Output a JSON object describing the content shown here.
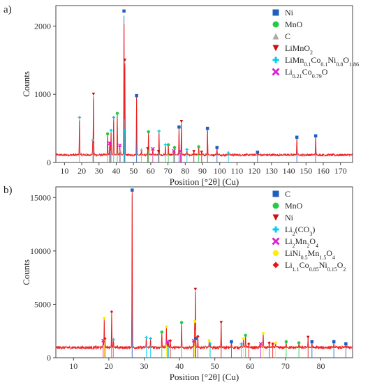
{
  "chart_data": [
    {
      "type": "line",
      "panel": "a)",
      "xlabel": "Position [°2θ] (Cu)",
      "ylabel": "Counts",
      "xlim": [
        5,
        177
      ],
      "ylim": [
        0,
        2300
      ],
      "xticks": [
        10,
        20,
        30,
        40,
        50,
        60,
        70,
        80,
        90,
        100,
        110,
        120,
        130,
        140,
        150,
        160,
        170
      ],
      "yticks": [
        0,
        1000,
        2000
      ],
      "grid": false,
      "legend_position": "top-right",
      "background_noise": 110,
      "series": [
        {
          "name": "Ni",
          "parts": [
            [
              "Ni",
              "normal"
            ]
          ],
          "marker": "square",
          "color": "#1f5fbf",
          "peaks": [
            [
              44.5,
              2220
            ],
            [
              51.8,
              980
            ],
            [
              76.4,
              520
            ],
            [
              92.9,
              500
            ],
            [
              98.4,
              220
            ],
            [
              121.9,
              150
            ],
            [
              144.7,
              370
            ],
            [
              155.6,
              390
            ]
          ]
        },
        {
          "name": "MnO",
          "parts": [
            [
              "MnO",
              "normal"
            ]
          ],
          "marker": "circle",
          "color": "#22cc44",
          "peaks": [
            [
              35.0,
              420
            ],
            [
              40.6,
              720
            ],
            [
              58.7,
              450
            ],
            [
              70.2,
              260
            ],
            [
              73.8,
              220
            ],
            [
              87.8,
              230
            ]
          ]
        },
        {
          "name": "C",
          "parts": [
            [
              "C",
              "normal"
            ]
          ],
          "marker": "triangle",
          "color": "#aaaaaa",
          "peaks": [
            [
              26.4,
              340
            ],
            [
              42.4,
              170
            ],
            [
              54.6,
              190
            ],
            [
              77.4,
              160
            ]
          ]
        },
        {
          "name": "LiMnO2",
          "parts": [
            [
              "LiMnO",
              "normal"
            ],
            [
              "2",
              "sub"
            ]
          ],
          "marker": "triangle-down",
          "color": "#cc1111",
          "peaks": [
            [
              26.8,
              1000
            ],
            [
              36.5,
              280
            ],
            [
              45.0,
              1500
            ],
            [
              58.3,
              200
            ],
            [
              64.5,
              160
            ],
            [
              77.8,
              600
            ],
            [
              85.0,
              160
            ],
            [
              89.5,
              150
            ]
          ]
        },
        {
          "name": "LiMn0.1Co0.1Ni0.8O1.86",
          "parts": [
            [
              "LiMn",
              "normal"
            ],
            [
              "0.1",
              "sub"
            ],
            [
              "Co",
              "normal"
            ],
            [
              "0.1",
              "sub"
            ],
            [
              "Ni",
              "normal"
            ],
            [
              "0.8",
              "sub"
            ],
            [
              "O",
              "normal"
            ],
            [
              "1.86",
              "sub"
            ]
          ],
          "marker": "plus",
          "color": "#00ccee",
          "peaks": [
            [
              18.7,
              660
            ],
            [
              37.0,
              470
            ],
            [
              38.5,
              660
            ],
            [
              44.8,
              460
            ],
            [
              64.8,
              460
            ],
            [
              68.5,
              260
            ],
            [
              81.0,
              190
            ],
            [
              105.0,
              140
            ]
          ]
        },
        {
          "name": "Li0.21Co0.79O",
          "parts": [
            [
              "Li",
              "normal"
            ],
            [
              "0.21",
              "sub"
            ],
            [
              "Co",
              "normal"
            ],
            [
              "0.79",
              "sub"
            ],
            [
              "O",
              "normal"
            ]
          ],
          "marker": "x",
          "color": "#dd22cc",
          "peaks": [
            [
              36.2,
              280
            ],
            [
              42.1,
              250
            ],
            [
              61.2,
              200
            ],
            [
              73.4,
              170
            ],
            [
              77.2,
              170
            ]
          ]
        }
      ]
    },
    {
      "type": "line",
      "panel": "b)",
      "xlabel": "Position [°2θ] (Cu)",
      "ylabel": "Counts",
      "xlim": [
        5,
        89
      ],
      "ylim": [
        0,
        16000
      ],
      "xticks": [
        10,
        20,
        30,
        40,
        50,
        60,
        70,
        80
      ],
      "yticks": [
        0,
        5000,
        10000,
        15000
      ],
      "grid": false,
      "legend_position": "top-right",
      "background_noise": 950,
      "series": [
        {
          "name": "C",
          "parts": [
            [
              "C",
              "normal"
            ]
          ],
          "marker": "square",
          "color": "#1f5fbf",
          "peaks": [
            [
              26.6,
              15700
            ],
            [
              44.6,
              1800
            ],
            [
              54.7,
              1500
            ],
            [
              77.5,
              1500
            ],
            [
              83.7,
              1500
            ],
            [
              87.1,
              1300
            ]
          ]
        },
        {
          "name": "MnO",
          "parts": [
            [
              "MnO",
              "normal"
            ]
          ],
          "marker": "circle",
          "color": "#22cc44",
          "peaks": [
            [
              35.0,
              2400
            ],
            [
              40.6,
              3300
            ],
            [
              58.7,
              2100
            ],
            [
              70.2,
              1500
            ],
            [
              73.8,
              1400
            ]
          ]
        },
        {
          "name": "Ni",
          "parts": [
            [
              "Ni",
              "normal"
            ]
          ],
          "marker": "triangle-down",
          "color": "#cc1111",
          "peaks": [
            [
              44.5,
              6400
            ],
            [
              51.8,
              3300
            ],
            [
              76.4,
              1900
            ]
          ]
        },
        {
          "name": "Li2(CO3)",
          "parts": [
            [
              "Li",
              "normal"
            ],
            [
              "2",
              "sub"
            ],
            [
              "(CO",
              "normal"
            ],
            [
              "3",
              "sub"
            ],
            [
              ")",
              "normal"
            ]
          ],
          "marker": "plus",
          "color": "#00ccee",
          "peaks": [
            [
              21.3,
              1700
            ],
            [
              30.6,
              1900
            ],
            [
              31.8,
              1800
            ],
            [
              36.9,
              1500
            ],
            [
              48.7,
              1300
            ],
            [
              57.5,
              1300
            ]
          ]
        },
        {
          "name": "Li2Mn2O4",
          "parts": [
            [
              "Li",
              "normal"
            ],
            [
              "2",
              "sub"
            ],
            [
              "Mn",
              "normal"
            ],
            [
              "2",
              "sub"
            ],
            [
              "O",
              "normal"
            ],
            [
              "4",
              "sub"
            ]
          ],
          "marker": "x",
          "color": "#dd22cc",
          "peaks": [
            [
              18.4,
              1600
            ],
            [
              36.6,
              1500
            ],
            [
              44.0,
              1600
            ],
            [
              63.0,
              1300
            ]
          ]
        },
        {
          "name": "LiNi0.5Mn1.5O4",
          "parts": [
            [
              "LiNi",
              "normal"
            ],
            [
              "0.5",
              "sub"
            ],
            [
              "Mn",
              "normal"
            ],
            [
              "1.5",
              "sub"
            ],
            [
              "O",
              "normal"
            ],
            [
              "4",
              "sub"
            ]
          ],
          "marker": "hexagon",
          "color": "#ffee00",
          "peaks": [
            [
              18.7,
              3700
            ],
            [
              36.3,
              2900
            ],
            [
              44.3,
              3400
            ],
            [
              48.4,
              1600
            ],
            [
              58.1,
              1800
            ],
            [
              63.7,
              2300
            ],
            [
              67.2,
              1400
            ]
          ]
        },
        {
          "name": "Li1.1Co0.85Ni0.15O2",
          "parts": [
            [
              "Li",
              "normal"
            ],
            [
              "1.1",
              "sub"
            ],
            [
              "Co",
              "normal"
            ],
            [
              "0.85",
              "sub"
            ],
            [
              "Ni",
              "normal"
            ],
            [
              "0.15",
              "sub"
            ],
            [
              "O",
              "normal"
            ],
            [
              "2",
              "sub"
            ]
          ],
          "marker": "diamond",
          "color": "#ee1111",
          "peaks": [
            [
              18.9,
              1800
            ],
            [
              20.8,
              4300
            ],
            [
              37.4,
              1600
            ],
            [
              45.2,
              2000
            ],
            [
              59.6,
              1300
            ],
            [
              65.4,
              1400
            ],
            [
              66.4,
              1300
            ]
          ]
        }
      ]
    }
  ]
}
